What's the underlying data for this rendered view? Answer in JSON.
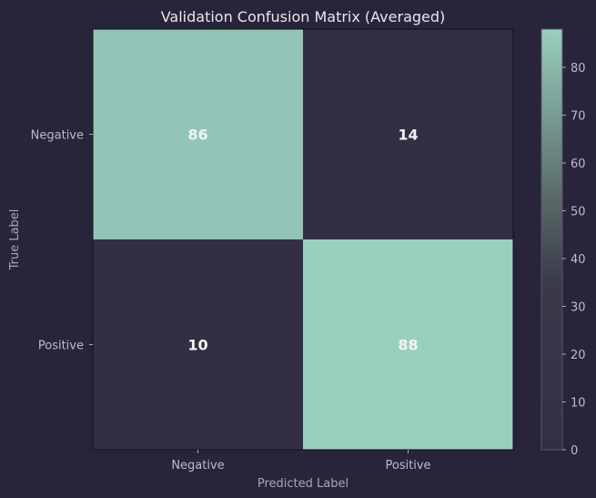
{
  "colors": {
    "background": "#28243a",
    "cell_low": "#332e42",
    "cell_high": "#99cfbf",
    "text": "#e9e6f0",
    "axis_text": "#aaa5ba"
  },
  "chart_data": {
    "type": "heatmap",
    "title": "Validation Confusion Matrix (Averaged)",
    "xlabel": "Predicted Label",
    "ylabel": "True Label",
    "x_categories": [
      "Negative",
      "Positive"
    ],
    "y_categories": [
      "Negative",
      "Positive"
    ],
    "values": [
      [
        86,
        14
      ],
      [
        10,
        88
      ]
    ],
    "colorbar": {
      "range": [
        0,
        88
      ],
      "ticks": [
        "0",
        "10",
        "20",
        "30",
        "40",
        "50",
        "60",
        "70",
        "80"
      ]
    }
  }
}
